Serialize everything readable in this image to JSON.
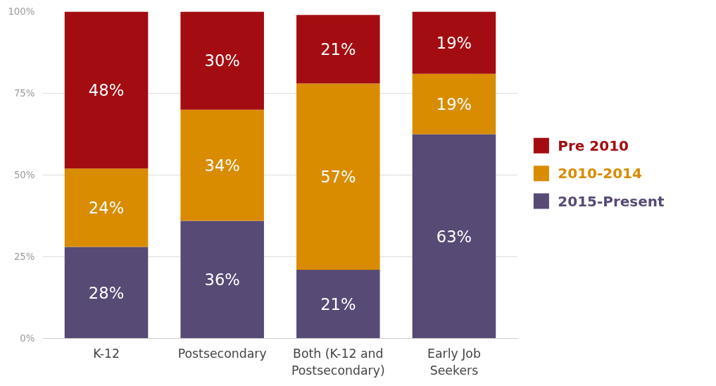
{
  "chart_data": {
    "type": "bar",
    "stacked": true,
    "categories": [
      "K-12",
      "Postsecondary",
      "Both (K-12 and Postsecondary)",
      "Early Job Seekers"
    ],
    "series": [
      {
        "name": "2015-Present",
        "color": "#574a75",
        "values": [
          28,
          36,
          21,
          62.5
        ],
        "value_labels": [
          "28%",
          "36%",
          "21%",
          "63%"
        ]
      },
      {
        "name": "2010-2014",
        "color": "#d98c00",
        "values": [
          24,
          34,
          57,
          18.5
        ],
        "value_labels": [
          "24%",
          "34%",
          "57%",
          "19%"
        ]
      },
      {
        "name": "Pre 2010",
        "color": "#a30d11",
        "values": [
          48,
          30,
          21,
          19
        ],
        "value_labels": [
          "48%",
          "30%",
          "21%",
          "19%"
        ]
      }
    ],
    "ylim": [
      0,
      100
    ],
    "yticks": [
      {
        "value": 0,
        "label": "0%"
      },
      {
        "value": 25,
        "label": "25%"
      },
      {
        "value": 50,
        "label": "50%"
      },
      {
        "value": 75,
        "label": "75%"
      },
      {
        "value": 100,
        "label": "100%"
      }
    ],
    "grid": "y",
    "legend": "right"
  }
}
